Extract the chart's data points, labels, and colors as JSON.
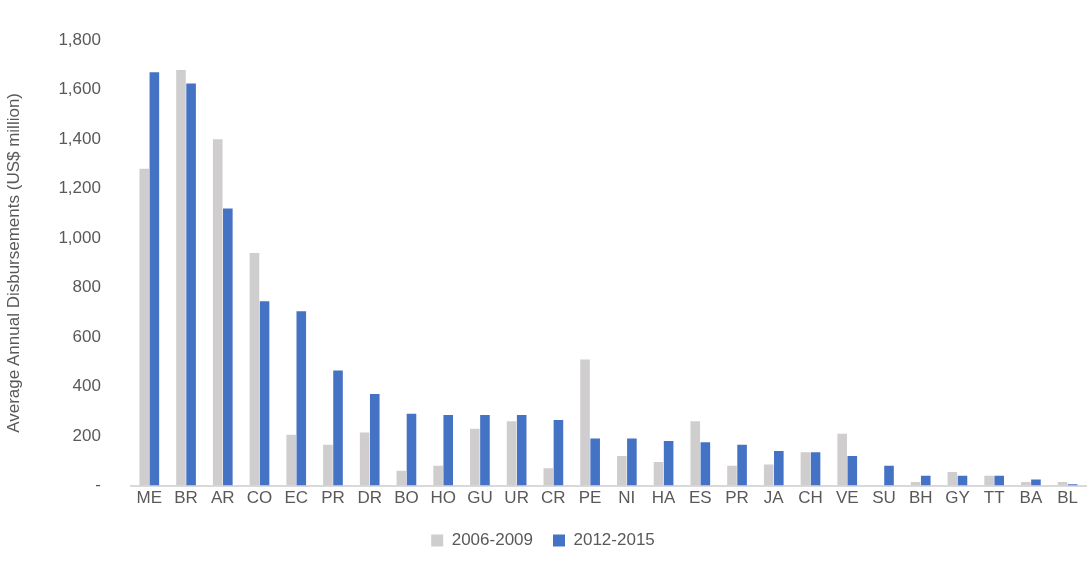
{
  "chart_data": {
    "type": "bar",
    "ylabel": "Average Annual Disbursements (US$ million)",
    "categories": [
      "ME",
      "BR",
      "AR",
      "CO",
      "EC",
      "PR",
      "DR",
      "BO",
      "HO",
      "GU",
      "UR",
      "CR",
      "PE",
      "NI",
      "HA",
      "ES",
      "PR",
      "JA",
      "CH",
      "VE",
      "SU",
      "BH",
      "GY",
      "TT",
      "BA",
      "BL"
    ],
    "series": [
      {
        "name": "2006-2009",
        "color": "#cfcdcd",
        "values": [
          1280,
          1680,
          1400,
          940,
          205,
          165,
          215,
          60,
          80,
          230,
          260,
          70,
          510,
          120,
          95,
          260,
          80,
          85,
          135,
          210,
          null,
          15,
          55,
          40,
          15,
          15
        ]
      },
      {
        "name": "2012-2015",
        "color": "#4472c4",
        "values": [
          1670,
          1625,
          1120,
          745,
          705,
          465,
          370,
          290,
          285,
          285,
          285,
          265,
          190,
          190,
          180,
          175,
          165,
          140,
          135,
          120,
          80,
          40,
          40,
          40,
          25,
          5
        ]
      }
    ],
    "ylim": [
      0,
      1800
    ],
    "yticks": [
      {
        "value": 0,
        "label": "-"
      },
      200,
      400,
      600,
      800,
      {
        "value": 1000,
        "label": "1,000"
      },
      {
        "value": 1200,
        "label": "1,200"
      },
      {
        "value": 1400,
        "label": "1,400"
      },
      {
        "value": 1600,
        "label": "1,600"
      },
      {
        "value": 1800,
        "label": "1,800"
      }
    ],
    "grid": false,
    "legend": "bottom"
  }
}
